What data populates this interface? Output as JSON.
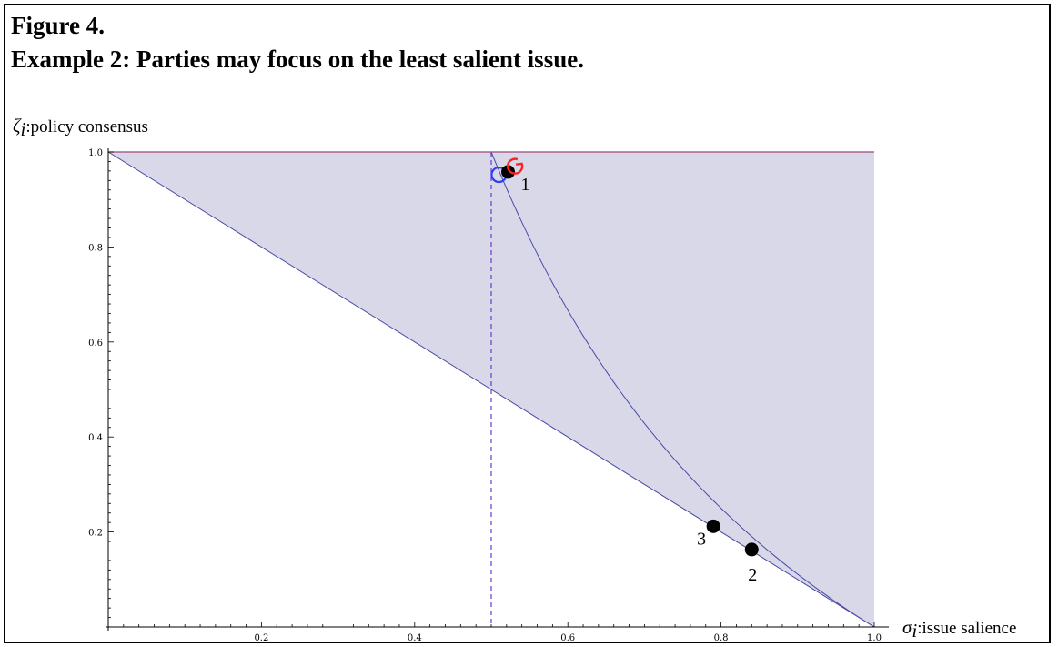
{
  "figure": {
    "title_line1": "Figure 4.",
    "title_line2": "Example 2: Parties may focus on the least salient issue."
  },
  "chart_data": {
    "type": "scatter",
    "xlabel": {
      "symbol": "σ",
      "subscript": "i",
      "text": ":issue salience"
    },
    "ylabel": {
      "symbol": "ζ",
      "subscript": "i",
      "text": ":policy consensus"
    },
    "xlim": [
      0,
      1.0
    ],
    "ylim": [
      0,
      1.0
    ],
    "x_ticks": [
      "0.2",
      "0.4",
      "0.6",
      "0.8",
      "1.0"
    ],
    "y_ticks": [
      "0.2",
      "0.4",
      "0.6",
      "0.8",
      "1.0"
    ],
    "grid": false,
    "colors": {
      "region_fill": "#d8d8e8",
      "lower_line": "#4a4aa6",
      "curve": "#4a4aa6",
      "top_line": "#9a4a7a",
      "vertical_dashed": "#6a3ad0",
      "point_fill": "#000000",
      "blue_marker": "#2b3fff",
      "red_marker": "#ff2020"
    },
    "lines": {
      "lower_boundary": [
        [
          0,
          1.0
        ],
        [
          1.0,
          0
        ]
      ],
      "top_boundary": [
        [
          0,
          1.0
        ],
        [
          1.0,
          1.0
        ]
      ],
      "vertical_dashed_x": 0.5,
      "curve_formula": "y = 1/x - 1"
    },
    "points": [
      {
        "label": "1",
        "x": 0.522,
        "y": 0.958
      },
      {
        "label": "2",
        "x": 0.84,
        "y": 0.163
      },
      {
        "label": "3",
        "x": 0.79,
        "y": 0.212
      }
    ],
    "markers": [
      {
        "kind": "blue-circle",
        "x": 0.51,
        "y": 0.952
      },
      {
        "kind": "red-arc",
        "x": 0.531,
        "y": 0.97
      }
    ]
  }
}
